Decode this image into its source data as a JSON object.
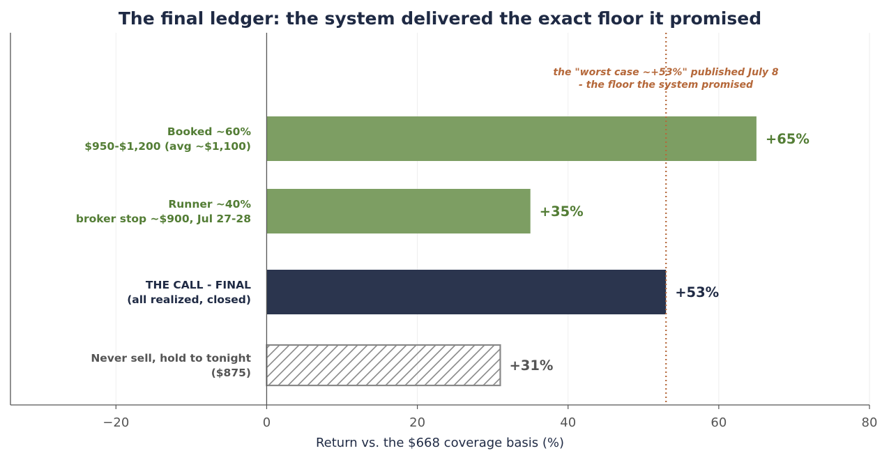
{
  "chart_data": {
    "type": "bar",
    "orientation": "horizontal",
    "title": "The final ledger: the system delivered the exact floor it promised",
    "xlabel": "Return vs. the $668 coverage basis (%)",
    "ylabel": "",
    "xlim": [
      -34,
      80
    ],
    "xticks": [
      {
        "value": -20,
        "label": "−20"
      },
      {
        "value": 0,
        "label": "0"
      },
      {
        "value": 20,
        "label": "20"
      },
      {
        "value": 40,
        "label": "40"
      },
      {
        "value": 60,
        "label": "60"
      },
      {
        "value": 80,
        "label": "80"
      }
    ],
    "grid": true,
    "bars": [
      {
        "label_lines": [
          "Booked ~60%",
          "$950-$1,200 (avg ~$1,100)"
        ],
        "value": 65,
        "value_label": "+65%",
        "color": "#7d9e63",
        "text_color": "#537d35",
        "style": "solid"
      },
      {
        "label_lines": [
          "Runner ~40%",
          "broker stop ~$900, Jul 27-28"
        ],
        "value": 35,
        "value_label": "+35%",
        "color": "#7d9e63",
        "text_color": "#537d35",
        "style": "solid"
      },
      {
        "label_lines": [
          "THE CALL - FINAL",
          "(all realized, closed)"
        ],
        "value": 53,
        "value_label": "+53%",
        "color": "#2b354e",
        "text_color": "#1f2a44",
        "style": "solid"
      },
      {
        "label_lines": [
          "Never sell, hold to tonight",
          "($875)"
        ],
        "value": 31,
        "value_label": "+31%",
        "color": "#888888",
        "text_color": "#555555",
        "style": "hatched"
      }
    ],
    "reference_line": {
      "value": 53,
      "color": "#b5683a",
      "style": "dotted",
      "annotation_lines": [
        "the \"worst case ~+53%\" published July 8",
        "- the floor the system promised"
      ]
    }
  }
}
